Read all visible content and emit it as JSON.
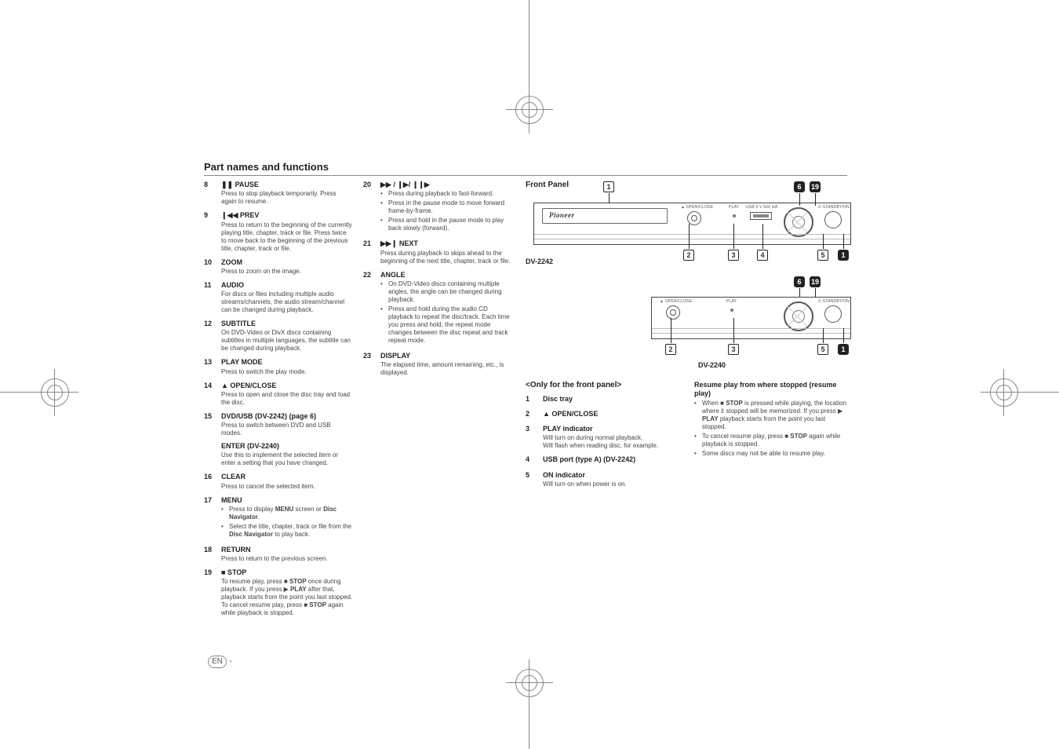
{
  "section_title": "Part names and functions",
  "col1": [
    {
      "num": "8",
      "label": "❚❚ PAUSE",
      "desc": "Press to stop playback temporarily. Press again to resume."
    },
    {
      "num": "9",
      "label": "❙◀◀ PREV",
      "desc": "Press to return to the beginning of the currently playing title, chapter, track or file. Press twice to move back to the beginning of the previous title, chapter, track or file."
    },
    {
      "num": "10",
      "label": "ZOOM",
      "desc": "Press to zoom on the image."
    },
    {
      "num": "11",
      "label": "AUDIO",
      "desc": "For discs or files including multiple audio streams/channels, the audio stream/channel can be changed during playback."
    },
    {
      "num": "12",
      "label": "SUBTITLE",
      "desc": "On DVD-Video or DivX discs containing subtitles in multiple languages, the subtitle can be changed during playback."
    },
    {
      "num": "13",
      "label": "PLAY MODE",
      "desc": "Press to switch the play mode."
    },
    {
      "num": "14",
      "label": "▲ OPEN/CLOSE",
      "desc": "Press to open and close the disc tray and load the disc."
    },
    {
      "num": "15",
      "label": "DVD/USB (DV-2242) (page 6)",
      "desc": "Press to switch between DVD and USB modes.",
      "extra_label": "ENTER (DV-2240)",
      "extra_desc": "Use this to implement the selected item or enter a setting that you have changed."
    },
    {
      "num": "16",
      "label": "CLEAR",
      "desc": "Press to cancel the selected item."
    },
    {
      "num": "17",
      "label": "MENU",
      "bullets": [
        "Press to display <b>MENU</b> screen or <b>Disc Navigator</b>.",
        "Select the title, chapter, track or file from the <b>Disc Navigator</b> to play back."
      ]
    },
    {
      "num": "18",
      "label": "RETURN",
      "desc": "Press to return to the previous screen."
    },
    {
      "num": "19",
      "label": "■ STOP",
      "desc": "To resume play, press ■ <b>STOP</b> once during playback. If you press ▶ <b>PLAY</b> after that, playback starts from the point you last stopped. To cancel resume play, press ■ <b>STOP</b> again while playback is stopped."
    }
  ],
  "col2": [
    {
      "num": "20",
      "label": "▶▶ / ❙▶/ ❙❙▶",
      "bullets": [
        "Press during playback to fast-forward.",
        "Press in the pause mode to move forward frame-by-frame.",
        "Press and hold in the pause mode to play back slowly (forward)."
      ]
    },
    {
      "num": "21",
      "label": "▶▶❙ NEXT",
      "desc": "Press during playback to skips ahead to the beginning of the next title, chapter, track or file."
    },
    {
      "num": "22",
      "label": "ANGLE",
      "bullets": [
        "On DVD-Video discs containing multiple angles, the angle can be changed during playback.",
        "Press and hold during the audio CD playback to repeat the disc/track. Each time you press and hold, the repeat mode changes between the disc repeat and track repeat mode."
      ]
    },
    {
      "num": "23",
      "label": "DISPLAY",
      "desc": "The elapsed time, amount remaining, etc., is displayed."
    }
  ],
  "front_panel": {
    "title": "Front Panel",
    "model1": "DV-2242",
    "model2": "DV-2240",
    "only_title": "<Only for the front panel>",
    "items": [
      {
        "num": "1",
        "label": "Disc tray"
      },
      {
        "num": "2",
        "label": "▲ OPEN/CLOSE"
      },
      {
        "num": "3",
        "label": "PLAY indicator",
        "desc": "Will turn on during normal playback.\nWill flash when reading disc, for example."
      },
      {
        "num": "4",
        "label": "USB port (type A) (DV-2242)"
      },
      {
        "num": "5",
        "label": "ON indicator",
        "desc": "Will turn on when power is on."
      }
    ],
    "brand": "Pioneer",
    "tiny_open": "▲ OPEN/CLOSE",
    "tiny_play": "PLAY",
    "tiny_usb": "USB 5 V 500 mA",
    "tiny_standby": "⏻ STANDBY/ON"
  },
  "resume": {
    "title": "Resume play from where stopped (resume play)",
    "bullets": [
      "When ■ <b>STOP</b> is pressed while playing, the location where it stopped will be memorized. If you press ▶ <b>PLAY</b> playback starts from the point you last stopped.",
      "To cancel resume play, press ■ <b>STOP</b> again while playback is stopped.",
      "Some discs may not be able to resume play."
    ]
  },
  "en_label": "EN",
  "callouts_top": {
    "c1": "1",
    "c2": "2",
    "c3": "3",
    "c4": "4",
    "c5": "5",
    "c6": "6",
    "c19": "19"
  },
  "colors": {
    "line": "#888888",
    "text": "#333333",
    "dark": "#222222"
  }
}
